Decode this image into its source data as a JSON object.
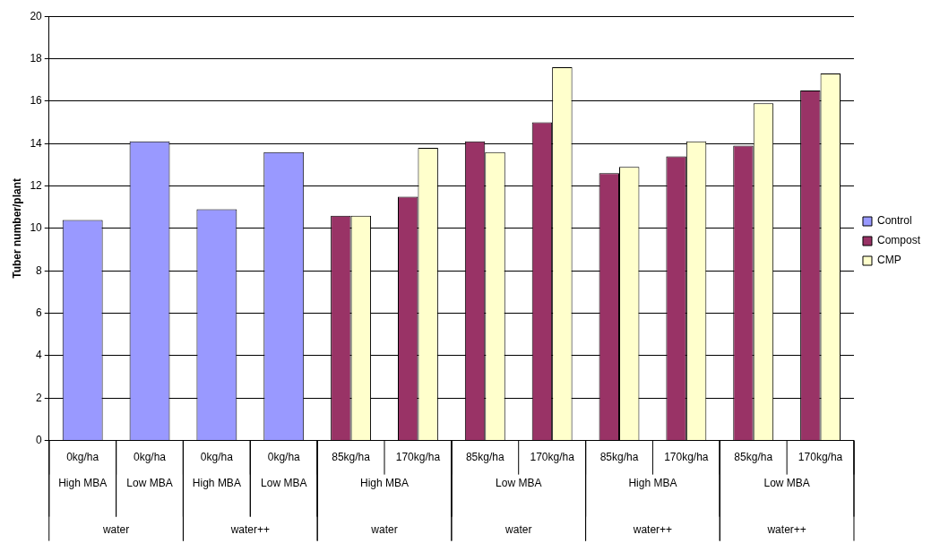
{
  "chart_data": {
    "type": "bar",
    "ylabel": "Tuber number/plant",
    "categories": [
      "0kg/ha",
      "0kg/ha",
      "0kg/ha",
      "0kg/ha",
      "85kg/ha",
      "170kg/ha",
      "85kg/ha",
      "170kg/ha",
      "85kg/ha",
      "170kg/ha",
      "85kg/ha",
      "170kg/ha"
    ],
    "series": [
      {
        "name": "Control",
        "color": "#9999ff",
        "values": [
          10.4,
          14.1,
          10.9,
          13.6,
          null,
          null,
          null,
          null,
          null,
          null,
          null,
          null
        ]
      },
      {
        "name": "Compost",
        "color": "#993366",
        "values": [
          null,
          null,
          null,
          null,
          10.6,
          11.5,
          14.1,
          15.0,
          12.6,
          13.4,
          13.9,
          16.5
        ]
      },
      {
        "name": "CMP",
        "color": "#ffffcc",
        "values": [
          null,
          null,
          null,
          null,
          10.6,
          13.8,
          13.6,
          17.6,
          12.9,
          14.1,
          15.9,
          17.3
        ]
      }
    ],
    "annotations": [
      "High MBA",
      "Low MBA",
      "High MBA",
      "Low MBA",
      "High MBA",
      "Low MBA",
      "High MBA",
      "Low MBA",
      "water",
      "water++",
      "water",
      "water",
      "water++",
      "water++"
    ],
    "ylim": [
      0,
      20
    ],
    "yticks": [
      0,
      2,
      4,
      6,
      8,
      10,
      12,
      14,
      16,
      18,
      20
    ],
    "grid": "y",
    "legend": "right"
  }
}
